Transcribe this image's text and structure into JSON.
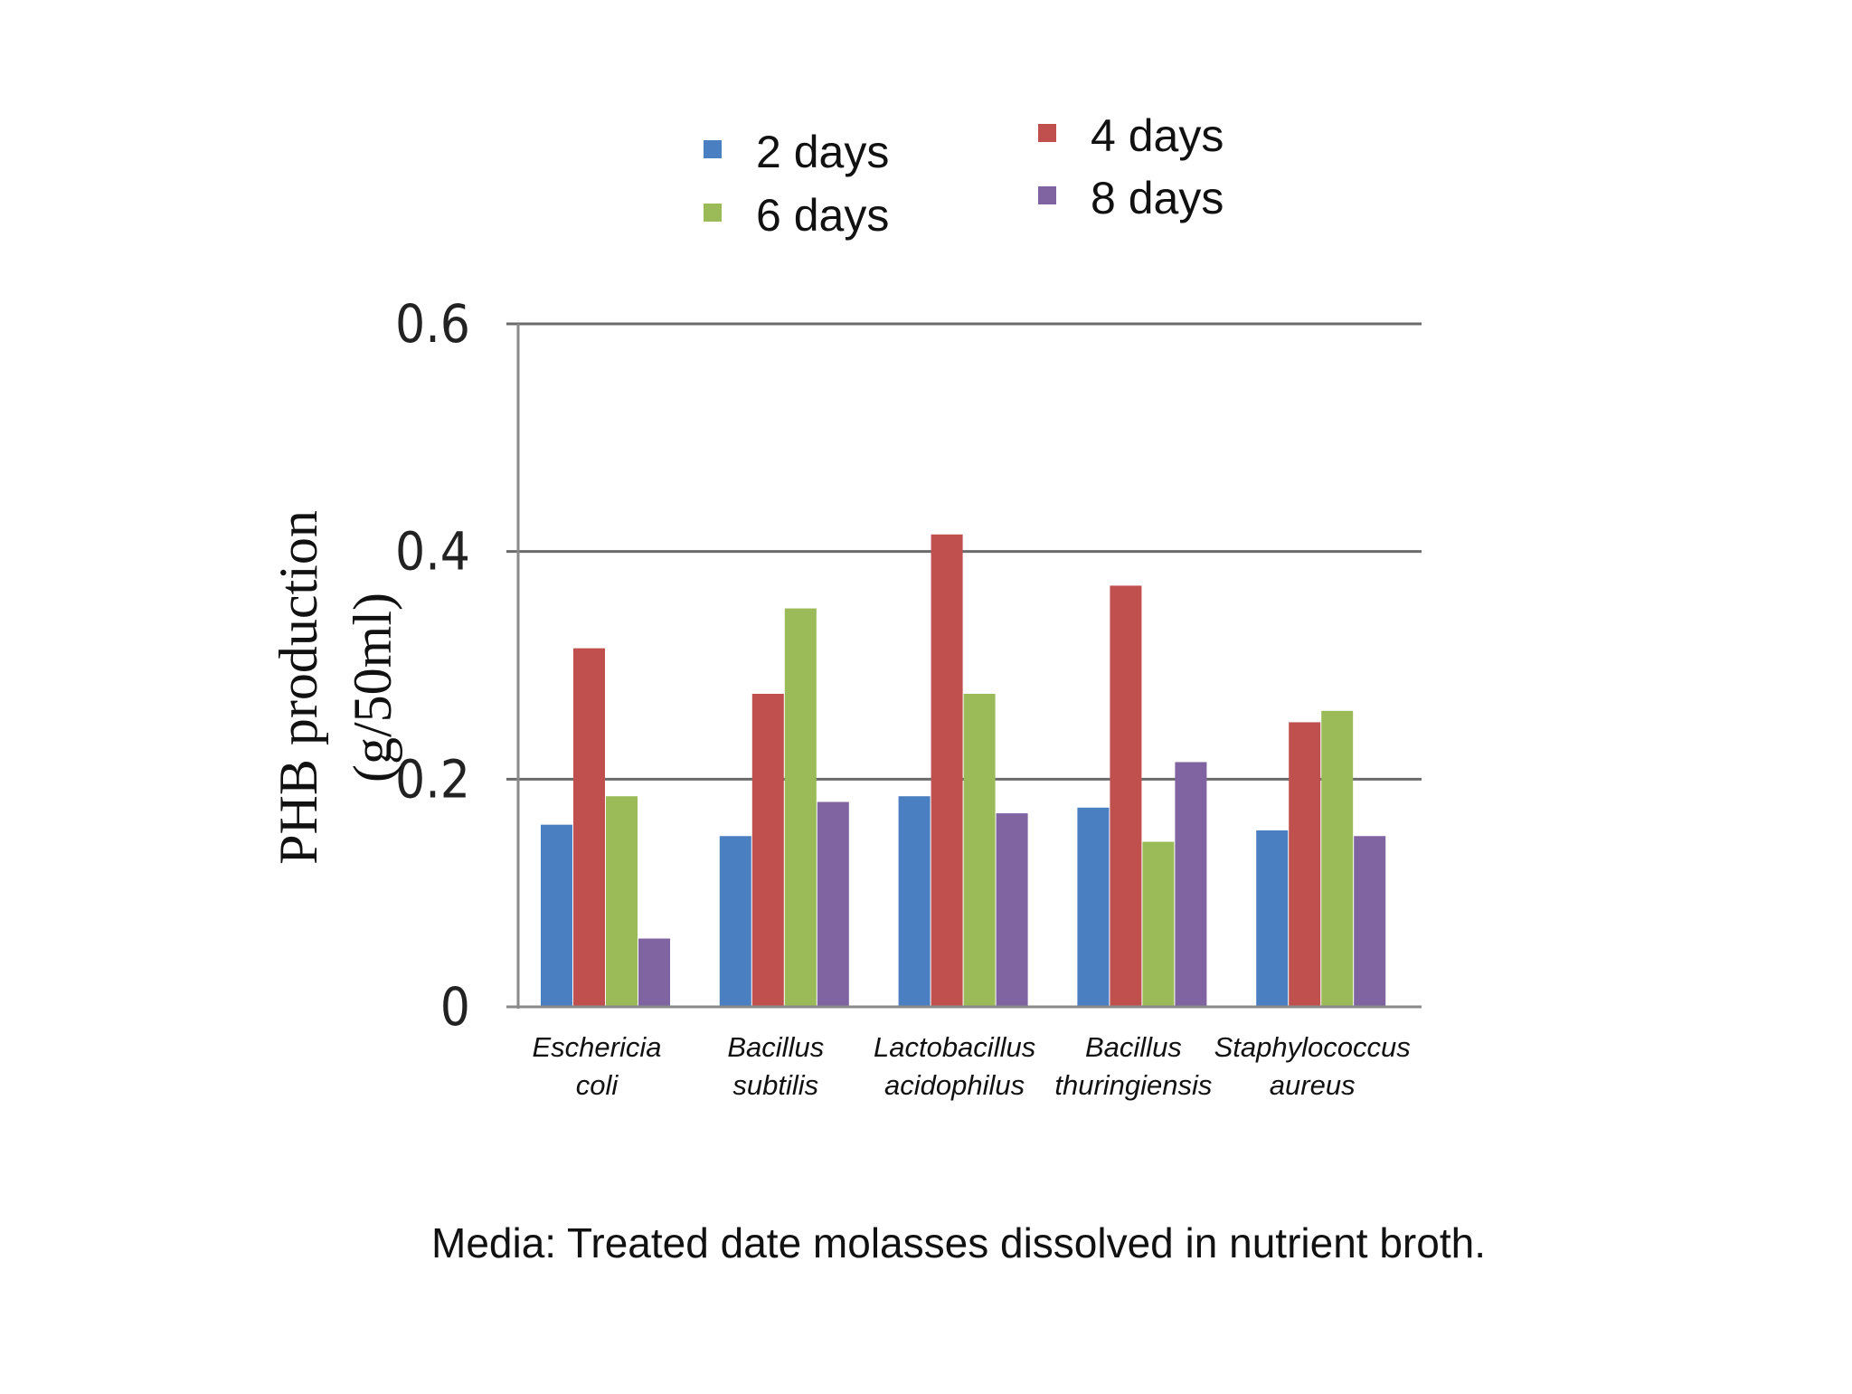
{
  "chart_data": {
    "type": "bar",
    "categories": [
      [
        "Eschericia",
        "coli"
      ],
      [
        "Bacillus",
        "subtilis"
      ],
      [
        "Lactobacillus",
        "acidophilus"
      ],
      [
        "Bacillus",
        "thuringiensis"
      ],
      [
        "Staphylococcus",
        "aureus"
      ]
    ],
    "series": [
      {
        "name": "2 days",
        "color": "#4a7fc1",
        "values": [
          0.16,
          0.15,
          0.185,
          0.175,
          0.155
        ]
      },
      {
        "name": "4 days",
        "color": "#c0504d",
        "values": [
          0.315,
          0.275,
          0.415,
          0.37,
          0.25
        ]
      },
      {
        "name": "6 days",
        "color": "#9bbb59",
        "values": [
          0.185,
          0.35,
          0.275,
          0.145,
          0.26
        ]
      },
      {
        "name": "8 days",
        "color": "#8064a2",
        "values": [
          0.06,
          0.18,
          0.17,
          0.215,
          0.15
        ]
      }
    ],
    "yticks": [
      "0",
      "0.2",
      "0.4",
      "0.6"
    ],
    "ylim": [
      0,
      0.6
    ],
    "ylabel": [
      "PHB production",
      "(g/50ml)"
    ],
    "grid": true,
    "legend_position": "top"
  },
  "caption": "Media: Treated date molasses dissolved in nutrient broth."
}
